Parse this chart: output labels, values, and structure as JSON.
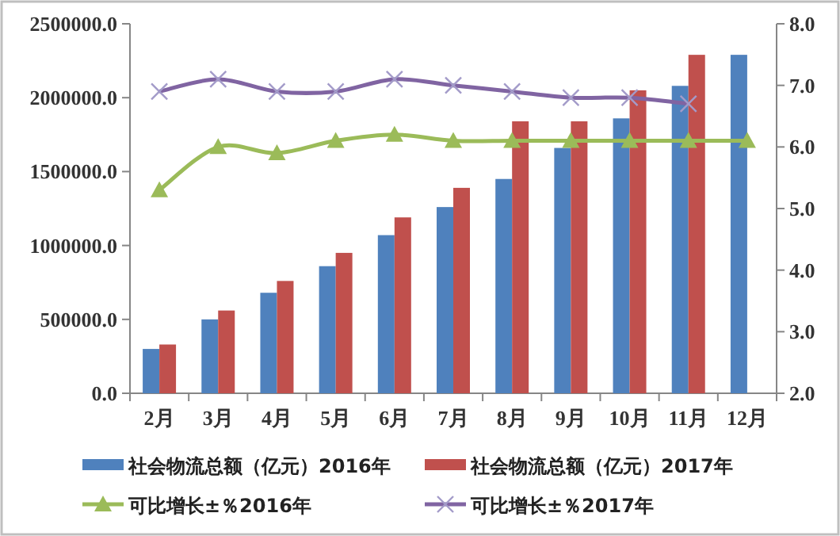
{
  "chart_data": {
    "type": "bar",
    "categories": [
      "2月",
      "3月",
      "4月",
      "5月",
      "6月",
      "7月",
      "8月",
      "9月",
      "10月",
      "11月",
      "12月"
    ],
    "series": [
      {
        "name": "社会物流总额（亿元）2016年",
        "color": "#4f81bd",
        "values": [
          300000,
          500000,
          680000,
          860000,
          1070000,
          1260000,
          1450000,
          1660000,
          1860000,
          2080000,
          2290000
        ]
      },
      {
        "name": "社会物流总额（亿元）2017年",
        "color": "#c0504d",
        "values": [
          330000,
          560000,
          760000,
          950000,
          1190000,
          1390000,
          1840000,
          1840000,
          2050000,
          2290000,
          null
        ]
      },
      {
        "name": "可比增长±％2016年",
        "type": "line",
        "axis": "y2",
        "marker": "triangle",
        "color": "#9bbb59",
        "values": [
          5.3,
          6.0,
          5.9,
          6.1,
          6.2,
          6.1,
          6.1,
          6.1,
          6.1,
          6.1,
          6.1
        ]
      },
      {
        "name": "可比增长±％2017年",
        "type": "line",
        "axis": "y2",
        "marker": "cross",
        "color": "#8064a2",
        "values": [
          6.9,
          7.1,
          6.9,
          6.9,
          7.1,
          7.0,
          6.9,
          6.8,
          6.8,
          6.7,
          null
        ]
      }
    ],
    "ylim": [
      0,
      2500000
    ],
    "yticks": [
      {
        "value": 0,
        "label": "0.0"
      },
      {
        "value": 500000,
        "label": "500000.0"
      },
      {
        "value": 1000000,
        "label": "1000000.0"
      },
      {
        "value": 1500000,
        "label": "1500000.0"
      },
      {
        "value": 2000000,
        "label": "2000000.0"
      },
      {
        "value": 2500000,
        "label": "2500000.0"
      }
    ],
    "y2lim": [
      2,
      8
    ],
    "y2ticks": [
      {
        "value": 2,
        "label": "2.0"
      },
      {
        "value": 3,
        "label": "3.0"
      },
      {
        "value": 4,
        "label": "4.0"
      },
      {
        "value": 5,
        "label": "5.0"
      },
      {
        "value": 6,
        "label": "6.0"
      },
      {
        "value": 7,
        "label": "7.0"
      },
      {
        "value": 8,
        "label": "8.0"
      }
    ],
    "grid": false,
    "legend": "bottom"
  }
}
